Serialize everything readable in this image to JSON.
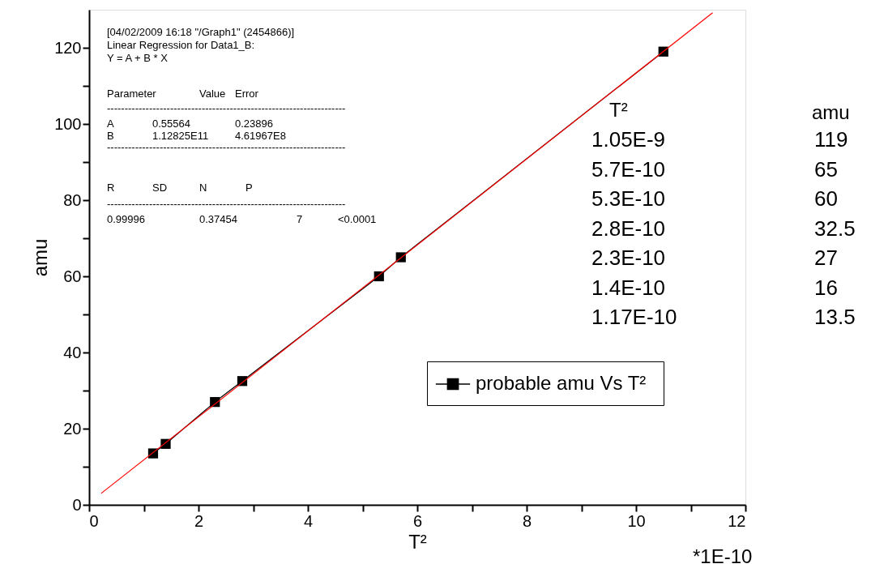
{
  "chart_data": {
    "type": "line",
    "xlabel": "T²",
    "ylabel": "amu",
    "xlim": [
      0,
      12
    ],
    "ylim": [
      0,
      130
    ],
    "xticks": [
      0,
      {
        "value": 1,
        "label": null
      },
      2,
      {
        "value": 3,
        "label": null
      },
      4,
      {
        "value": 5,
        "label": null
      },
      6,
      {
        "value": 7,
        "label": null
      },
      8,
      {
        "value": 9,
        "label": null
      },
      10,
      {
        "value": 11,
        "label": null
      },
      12
    ],
    "yticks": [
      0,
      {
        "value": 10,
        "label": null
      },
      20,
      {
        "value": 30,
        "label": null
      },
      40,
      {
        "value": 50,
        "label": null
      },
      60,
      {
        "value": 70,
        "label": null
      },
      80,
      {
        "value": 90,
        "label": null
      },
      100,
      {
        "value": 110,
        "label": null
      },
      120
    ],
    "series": [
      {
        "name": "probable  amu Vs T²",
        "color": "#000000",
        "marker": "square",
        "x": [
          10.5,
          5.7,
          5.3,
          2.8,
          2.3,
          1.4,
          1.17
        ],
        "values": [
          119,
          65,
          60,
          32.5,
          27,
          16,
          13.5
        ]
      },
      {
        "color": "#ff0000",
        "marker": "none",
        "x": [
          0.22,
          11.4
        ],
        "values": [
          3.0,
          129.2
        ]
      }
    ],
    "legend": "right",
    "grid": false,
    "annotations": [
      "[04/02/2009 16:18 \"/Graph1\" (2454866)]",
      "Linear Regression for Data1_B:",
      "Y = A + B * X",
      "Parameter",
      "Value",
      "Error",
      "--------------------------------------------------------------------",
      "A",
      "0.55564",
      "0.23896",
      "B",
      "1.12825E11",
      "4.61967E8",
      "--------------------------------------------------------------------",
      "R",
      "SD",
      "N",
      "P",
      "--------------------------------------------------------------------",
      "0.99996",
      "0.37454",
      "7",
      "<0.0001",
      "T²",
      "amu",
      "1.05E-9",
      "119",
      "5.7E-10",
      "65",
      "5.3E-10",
      "60",
      "2.8E-10",
      "32.5",
      "2.3E-10",
      "27",
      "1.4E-10",
      "16",
      "1.17E-10",
      "13.5",
      "*1E-10"
    ]
  }
}
